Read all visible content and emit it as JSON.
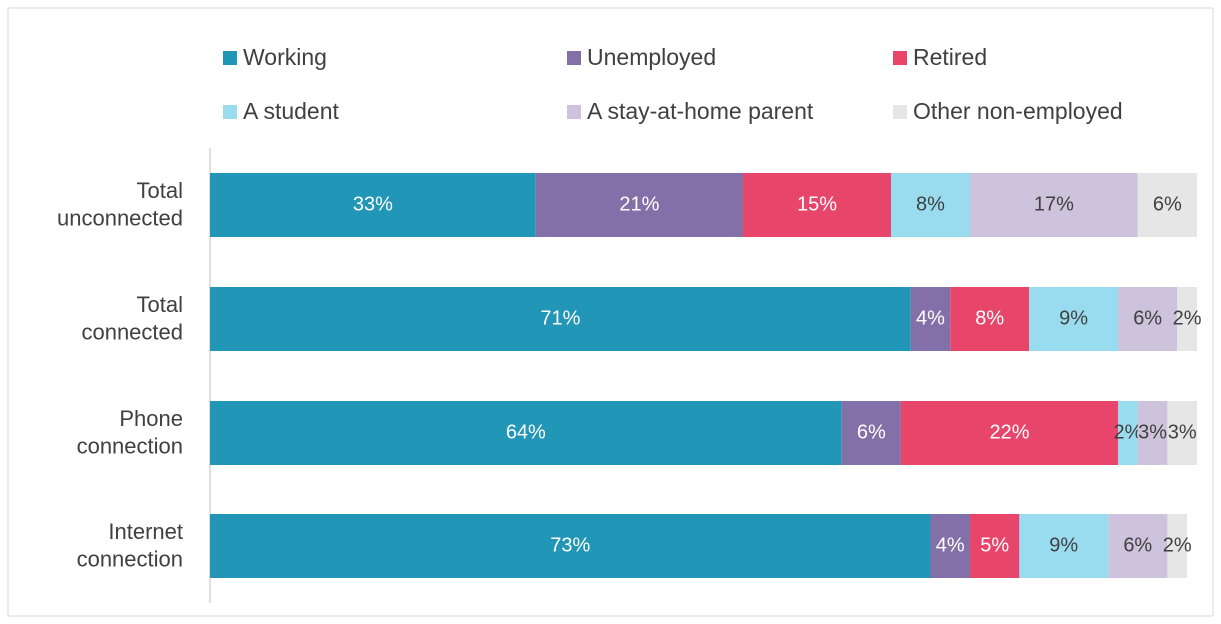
{
  "chart_data": {
    "type": "bar",
    "orientation": "horizontal",
    "stacked": true,
    "categories": [
      "Total unconnected",
      "Total connected",
      "Phone connection",
      "Internet connection"
    ],
    "xlim": [
      0,
      100
    ],
    "legend": "top",
    "series": [
      {
        "name": "Working",
        "color": "#2196b6",
        "values": [
          33,
          71,
          64,
          73
        ],
        "value_labels": [
          "33%",
          "71%",
          "64%",
          "73%"
        ]
      },
      {
        "name": "Unemployed",
        "color": "#8470a8",
        "values": [
          21,
          4,
          6,
          4
        ],
        "value_labels": [
          "21%",
          "4%",
          "6%",
          "4%"
        ]
      },
      {
        "name": "Retired",
        "color": "#e8456b",
        "values": [
          15,
          8,
          22,
          5
        ],
        "value_labels": [
          "15%",
          "8%",
          "22%",
          "5%"
        ]
      },
      {
        "name": "A student",
        "color": "#99dcef",
        "values": [
          8,
          9,
          2,
          9
        ],
        "value_labels": [
          "8%",
          "9%",
          "2%",
          "9%"
        ]
      },
      {
        "name": "A stay-at-home parent",
        "color": "#cdc3dc",
        "values": [
          17,
          6,
          3,
          6
        ],
        "value_labels": [
          "17%",
          "6%",
          "3%",
          "6%"
        ]
      },
      {
        "name": "Other non-employed",
        "color": "#e6e6e6",
        "values": [
          6,
          2,
          3,
          2
        ],
        "value_labels": [
          "6%",
          "2%",
          "3%",
          "2%"
        ]
      }
    ]
  }
}
